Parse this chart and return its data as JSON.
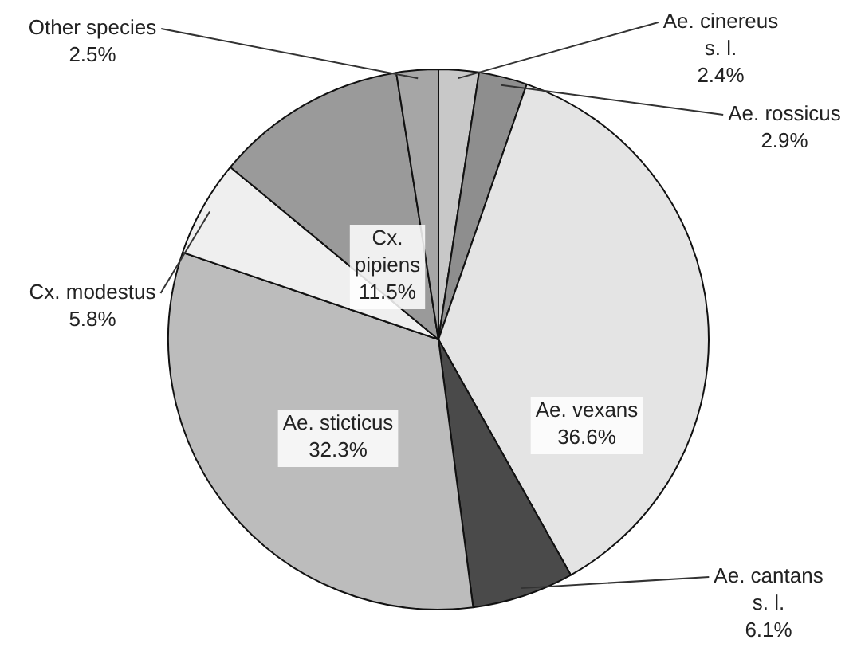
{
  "chart_data": {
    "type": "pie",
    "categories": [
      "Ae. cinereus s. l.",
      "Ae. rossicus",
      "Ae. vexans",
      "Ae. cantans s. l.",
      "Ae. sticticus",
      "Cx. modestus",
      "Cx. pipiens",
      "Other species"
    ],
    "values": [
      2.4,
      2.9,
      36.6,
      6.1,
      32.3,
      5.8,
      11.5,
      2.5
    ],
    "value_labels": [
      "2.4%",
      "2.9%",
      "36.6%",
      "6.1%",
      "32.3%",
      "5.8%",
      "11.5%",
      "2.5%"
    ],
    "colors": [
      "#c8c8c8",
      "#8e8e8e",
      "#e4e4e4",
      "#4a4a4a",
      "#bcbcbc",
      "#efefef",
      "#9a9a9a",
      "#a6a6a6"
    ],
    "legend": false
  }
}
